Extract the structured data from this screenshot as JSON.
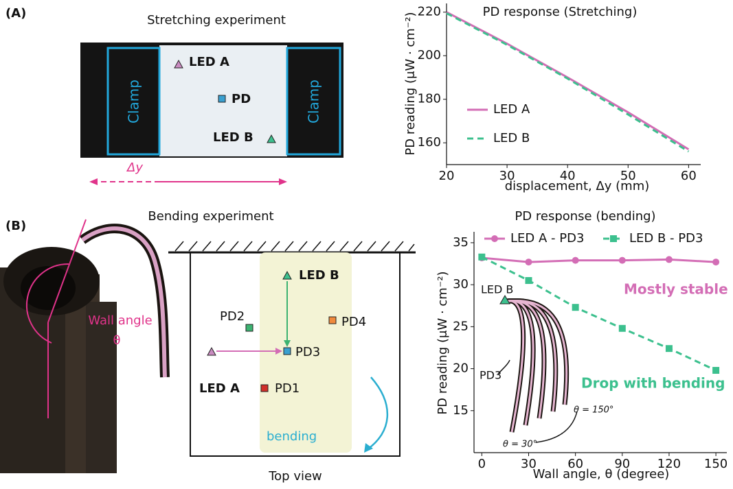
{
  "figure": {
    "panel_a": {
      "label": "(A)",
      "title": "Stretching experiment",
      "clamp_left": "Clamp",
      "clamp_right": "Clamp",
      "led_a": "LED A",
      "pd": "PD",
      "led_b": "LED B",
      "delta": "Δy"
    },
    "panel_b": {
      "label": "(B)",
      "title": "Bending experiment",
      "wall_angle": "Wall angle",
      "theta": "θ",
      "led_b": "LED B",
      "pd2": "PD2",
      "pd4": "PD4",
      "pd3": "PD3",
      "led_a": "LED A",
      "pd1": "PD1",
      "bending": "bending",
      "top_view": "Top view"
    }
  },
  "chart_data": [
    {
      "type": "line",
      "title": "PD response (Stretching)",
      "x_label": "displacement, Δy (mm)",
      "y_label": "PD reading (μW · cm⁻²)",
      "x": [
        20,
        30,
        40,
        50,
        60
      ],
      "series": [
        {
          "name": "LED A",
          "color": "#d36db5",
          "linestyle": "solid",
          "values": [
            220,
            205.5,
            190,
            174,
            157
          ]
        },
        {
          "name": "LED B",
          "color": "#3cc08e",
          "linestyle": "dashed",
          "values": [
            219.5,
            205,
            189.5,
            173,
            156
          ]
        }
      ],
      "xlim": [
        20,
        62
      ],
      "xticks": [
        20,
        30,
        40,
        50,
        60
      ],
      "ylim": [
        150,
        224
      ],
      "yticks": [
        160,
        180,
        200,
        220
      ],
      "legend": "center left"
    },
    {
      "type": "line",
      "title": "PD response (bending)",
      "x_label": "Wall angle, θ (degree)",
      "y_label": "PD reading (μW · cm⁻²)",
      "x": [
        0,
        30,
        60,
        90,
        120,
        150
      ],
      "series": [
        {
          "name": "LED A - PD3",
          "color": "#d36db5",
          "linestyle": "solid",
          "marker": "circle",
          "values": [
            33.2,
            32.7,
            32.9,
            32.9,
            33.0,
            32.7
          ]
        },
        {
          "name": "LED B - PD3",
          "color": "#3cc08e",
          "linestyle": "dashed",
          "marker": "square",
          "values": [
            33.3,
            30.5,
            27.3,
            24.8,
            22.4,
            19.8
          ]
        }
      ],
      "xlim": [
        -5,
        157
      ],
      "xticks": [
        0,
        30,
        60,
        90,
        120,
        150
      ],
      "ylim": [
        10,
        36.3
      ],
      "yticks": [
        15,
        20,
        25,
        30,
        35
      ],
      "legend": "upper center",
      "annotations": [
        {
          "text": "Mostly stable",
          "color": "#d36db5"
        },
        {
          "text": "Drop with bending",
          "color": "#3cc08e"
        },
        {
          "text": "LED B",
          "color": "#111111"
        },
        {
          "text": "PD3",
          "color": "#111111"
        },
        {
          "text": "θ = 30°",
          "color": "#111111"
        },
        {
          "text": "θ = 150°",
          "color": "#111111"
        }
      ]
    }
  ]
}
